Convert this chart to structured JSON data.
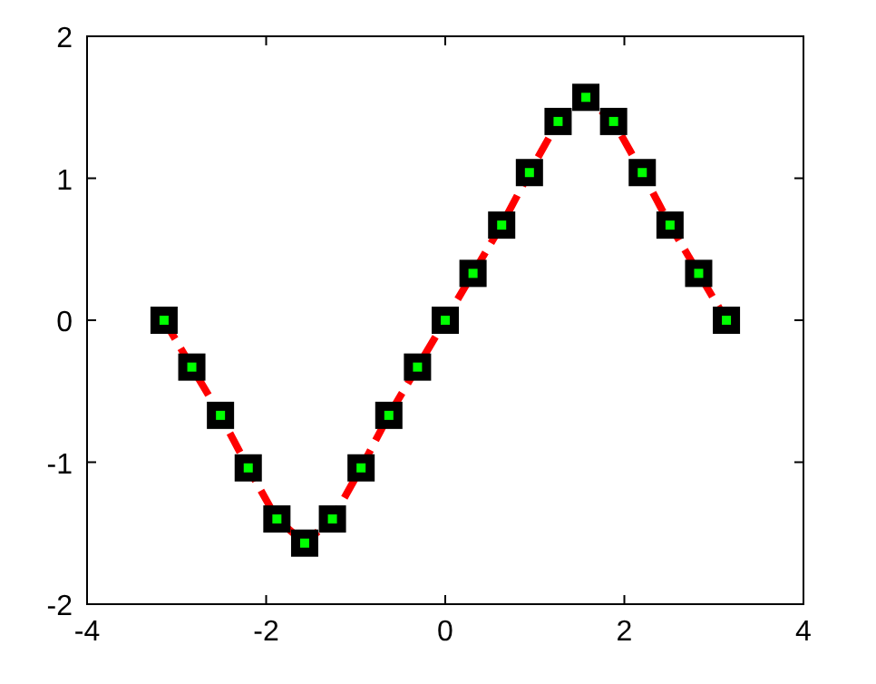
{
  "chart_data": {
    "type": "line",
    "x": [
      -3.14,
      -2.83,
      -2.51,
      -2.2,
      -1.88,
      -1.57,
      -1.26,
      -0.94,
      -0.63,
      -0.31,
      0,
      0.31,
      0.63,
      0.94,
      1.26,
      1.57,
      1.88,
      2.2,
      2.51,
      2.83,
      3.14
    ],
    "series": [
      {
        "color": "#ff0000",
        "values": [
          0,
          -0.33,
          -0.67,
          -1.04,
          -1.4,
          -1.57,
          -1.4,
          -1.04,
          -0.67,
          -0.33,
          0,
          0.33,
          0.67,
          1.04,
          1.4,
          1.57,
          1.4,
          1.04,
          0.67,
          0.33,
          0
        ]
      }
    ],
    "xlim": [
      -4,
      4
    ],
    "xticks": [
      -4,
      -2,
      0,
      2,
      4
    ],
    "ylim": [
      -2,
      2
    ],
    "yticks": [
      -2,
      -1,
      0,
      1,
      2
    ],
    "grid": false,
    "marker": "square",
    "line_style": "dashed"
  }
}
